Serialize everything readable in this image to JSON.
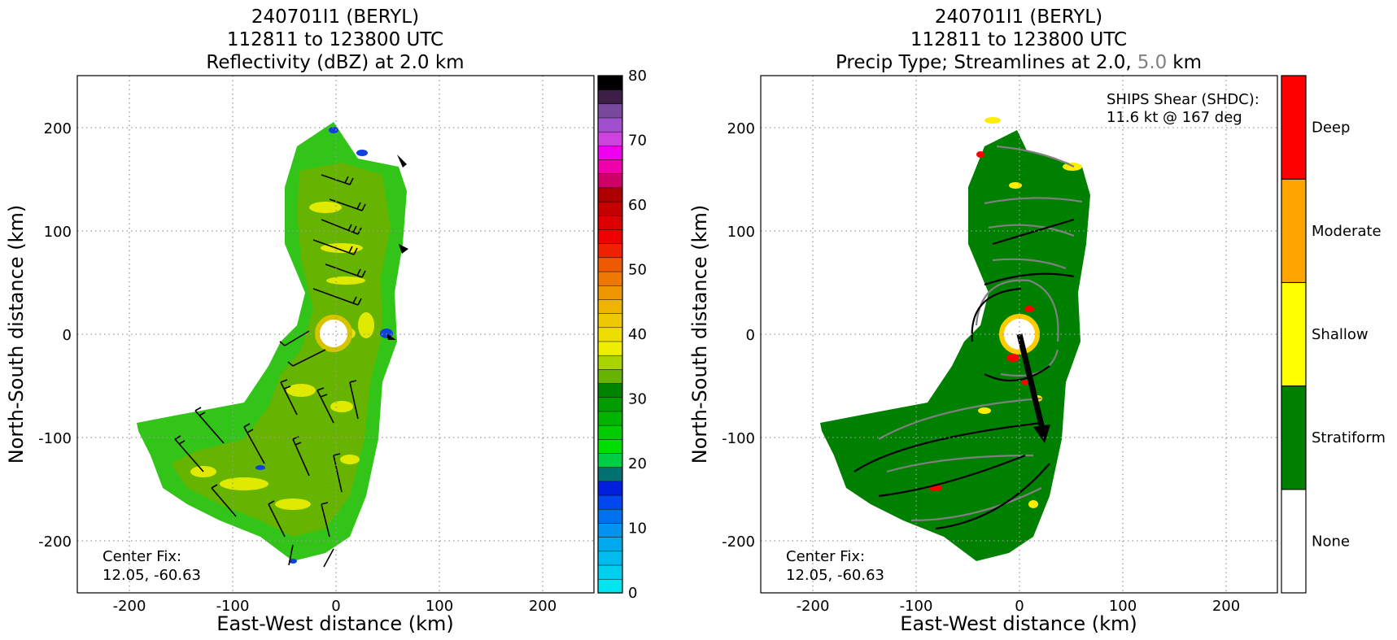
{
  "chart_data": [
    {
      "type": "heatmap",
      "title": [
        "240701I1 (BERYL)",
        "112811 to 123800 UTC",
        "Reflectivity (dBZ) at 2.0 km"
      ],
      "xlabel": "East-West distance (km)",
      "ylabel": "North-South distance (km)",
      "xlim": [
        -250,
        250
      ],
      "ylim": [
        -250,
        250
      ],
      "xticks": [
        -200,
        -100,
        0,
        100,
        200
      ],
      "yticks": [
        -200,
        -100,
        0,
        100,
        200
      ],
      "grid": true,
      "colorbar": {
        "label_values": [
          0,
          10,
          20,
          30,
          40,
          50,
          60,
          70,
          80
        ],
        "range": [
          0,
          80
        ],
        "colors": [
          "#00e5ee",
          "#00d0ee",
          "#00bcee",
          "#00a8ee",
          "#0094ee",
          "#0070ee",
          "#0048ee",
          "#0020dd",
          "#007070",
          "#00cc44",
          "#00dd00",
          "#00cc00",
          "#00b400",
          "#009c00",
          "#008400",
          "#66b400",
          "#aad400",
          "#eeee00",
          "#eedd00",
          "#eec800",
          "#eeb400",
          "#ee9600",
          "#ee7800",
          "#ee5a00",
          "#ee2200",
          "#ee0000",
          "#dd0000",
          "#c40000",
          "#ae0000",
          "#cc0066",
          "#ee00aa",
          "#ee00ee",
          "#cc44dd",
          "#a050cc",
          "#784a9c",
          "#3c1e46",
          "#000000"
        ]
      },
      "annotation": [
        "Center Fix:",
        "12.05, -60.63"
      ]
    },
    {
      "type": "heatmap",
      "title": [
        "240701I1 (BERYL)",
        "112811 to 123800 UTC",
        "Precip Type; Streamlines at 2.0,",
        "5.0",
        "km"
      ],
      "xlabel": "East-West distance (km)",
      "ylabel": "North-South distance (km)",
      "xlim": [
        -250,
        250
      ],
      "ylim": [
        -250,
        250
      ],
      "xticks": [
        -200,
        -100,
        0,
        100,
        200
      ],
      "yticks": [
        -200,
        -100,
        0,
        100,
        200
      ],
      "grid": true,
      "categories": [
        "None",
        "Stratiform",
        "Shallow",
        "Moderate",
        "Deep"
      ],
      "category_colors": [
        "#ffffff",
        "#008000",
        "#ffff00",
        "#ffa500",
        "#ff0000"
      ],
      "streamline_colors": {
        "2.0 km": "#000000",
        "5.0 km": "#808080"
      },
      "shear": {
        "label": "SHIPS Shear (SHDC):",
        "value": "11.6 kt @ 167 deg",
        "speed_kt": 11.6,
        "direction_deg": 167
      },
      "annotation": [
        "Center Fix:",
        "12.05, -60.63"
      ]
    }
  ]
}
